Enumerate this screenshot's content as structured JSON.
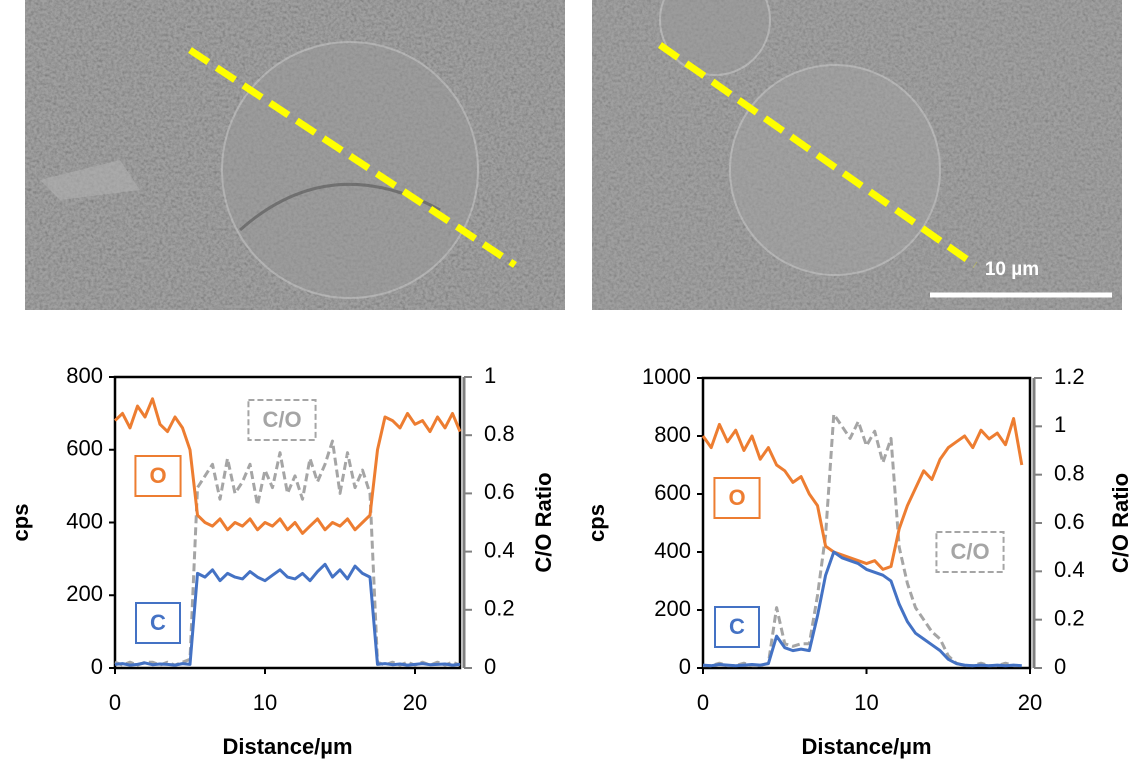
{
  "scale_bar_label": "10 µm",
  "chart_data": [
    {
      "type": "line",
      "x_label": "Distance/µm",
      "y_label": "cps",
      "y2_label": "C/O Ratio",
      "x": [
        0,
        0.5,
        1,
        1.5,
        2,
        2.5,
        3,
        3.5,
        4,
        4.5,
        5,
        5.5,
        6,
        6.5,
        7,
        7.5,
        8,
        8.5,
        9,
        9.5,
        10,
        10.5,
        11,
        11.5,
        12,
        12.5,
        13,
        13.5,
        14,
        14.5,
        15,
        15.5,
        16,
        16.5,
        17,
        17.5,
        18,
        18.5,
        19,
        19.5,
        20,
        20.5,
        21,
        21.5,
        22,
        22.5,
        23
      ],
      "xlim": [
        0,
        23
      ],
      "xticks": [
        0,
        10,
        20
      ],
      "ylim": [
        0,
        800
      ],
      "yticks": [
        0,
        200,
        400,
        600,
        800
      ],
      "y2lim": [
        0,
        1
      ],
      "y2ticks": [
        0,
        0.2,
        0.4,
        0.6,
        0.8,
        1
      ],
      "series": [
        {
          "name": "O",
          "color": "#ed7d31",
          "line_style": "solid",
          "values": [
            680,
            700,
            660,
            720,
            690,
            740,
            670,
            650,
            690,
            660,
            600,
            420,
            400,
            390,
            410,
            380,
            400,
            390,
            410,
            380,
            400,
            390,
            410,
            380,
            400,
            370,
            390,
            410,
            380,
            400,
            390,
            410,
            380,
            400,
            420,
            600,
            690,
            680,
            660,
            700,
            670,
            680,
            650,
            690,
            660,
            700,
            650
          ]
        },
        {
          "name": "C",
          "color": "#4472c4",
          "line_style": "solid",
          "values": [
            10,
            12,
            8,
            10,
            14,
            9,
            11,
            10,
            8,
            12,
            10,
            260,
            250,
            270,
            240,
            260,
            250,
            245,
            265,
            250,
            240,
            255,
            270,
            250,
            245,
            260,
            240,
            265,
            285,
            250,
            270,
            245,
            280,
            260,
            250,
            10,
            12,
            9,
            11,
            8,
            10,
            12,
            9,
            10,
            11,
            8,
            10
          ]
        },
        {
          "name": "C/O",
          "color": "#a5a5a5",
          "line_style": "dashed",
          "axis": "y2",
          "values": [
            0.02,
            0.01,
            0.02,
            0.01,
            0.02,
            0.02,
            0.01,
            0.02,
            0.01,
            0.02,
            0.03,
            0.62,
            0.66,
            0.7,
            0.58,
            0.72,
            0.6,
            0.64,
            0.7,
            0.56,
            0.68,
            0.62,
            0.74,
            0.6,
            0.66,
            0.58,
            0.72,
            0.64,
            0.7,
            0.78,
            0.6,
            0.74,
            0.62,
            0.68,
            0.6,
            0.02,
            0.01,
            0.02,
            0.01,
            0.02,
            0.01,
            0.02,
            0.01,
            0.02,
            0.01,
            0.02,
            0.01
          ]
        }
      ]
    },
    {
      "type": "line",
      "x_label": "Distance/µm",
      "y_label": "cps",
      "y2_label": "C/O Ratio",
      "x": [
        0,
        0.5,
        1,
        1.5,
        2,
        2.5,
        3,
        3.5,
        4,
        4.5,
        5,
        5.5,
        6,
        6.5,
        7,
        7.5,
        8,
        8.5,
        9,
        9.5,
        10,
        10.5,
        11,
        11.5,
        12,
        12.5,
        13,
        13.5,
        14,
        14.5,
        15,
        15.5,
        16,
        16.5,
        17,
        17.5,
        18,
        18.5,
        19,
        19.5
      ],
      "xlim": [
        0,
        20
      ],
      "xticks": [
        0,
        10,
        20
      ],
      "ylim": [
        0,
        1000
      ],
      "yticks": [
        0,
        200,
        400,
        600,
        800,
        1000
      ],
      "y2lim": [
        0,
        1.2
      ],
      "y2ticks": [
        0,
        0.2,
        0.4,
        0.6,
        0.8,
        1,
        1.2
      ],
      "series": [
        {
          "name": "O",
          "color": "#ed7d31",
          "line_style": "solid",
          "values": [
            800,
            760,
            840,
            780,
            820,
            750,
            800,
            720,
            760,
            700,
            680,
            640,
            660,
            600,
            560,
            420,
            400,
            390,
            380,
            370,
            360,
            370,
            340,
            350,
            480,
            560,
            620,
            680,
            650,
            720,
            760,
            780,
            800,
            760,
            820,
            790,
            810,
            770,
            860,
            700
          ]
        },
        {
          "name": "C",
          "color": "#4472c4",
          "line_style": "solid",
          "values": [
            10,
            8,
            12,
            10,
            8,
            10,
            12,
            10,
            15,
            110,
            70,
            60,
            65,
            60,
            180,
            320,
            400,
            380,
            370,
            360,
            340,
            330,
            320,
            300,
            220,
            160,
            120,
            100,
            80,
            60,
            30,
            15,
            10,
            8,
            10,
            8,
            10,
            8,
            10,
            8
          ]
        },
        {
          "name": "C/O",
          "color": "#a5a5a5",
          "line_style": "dashed",
          "axis": "y2",
          "values": [
            0.01,
            0.01,
            0.02,
            0.01,
            0.01,
            0.02,
            0.01,
            0.01,
            0.02,
            0.25,
            0.1,
            0.09,
            0.1,
            0.1,
            0.3,
            0.55,
            1.05,
            1.0,
            0.95,
            1.02,
            0.92,
            0.98,
            0.85,
            0.95,
            0.5,
            0.35,
            0.25,
            0.2,
            0.15,
            0.12,
            0.05,
            0.02,
            0.01,
            0.01,
            0.02,
            0.01,
            0.01,
            0.02,
            0.01,
            0.01
          ]
        }
      ]
    }
  ]
}
